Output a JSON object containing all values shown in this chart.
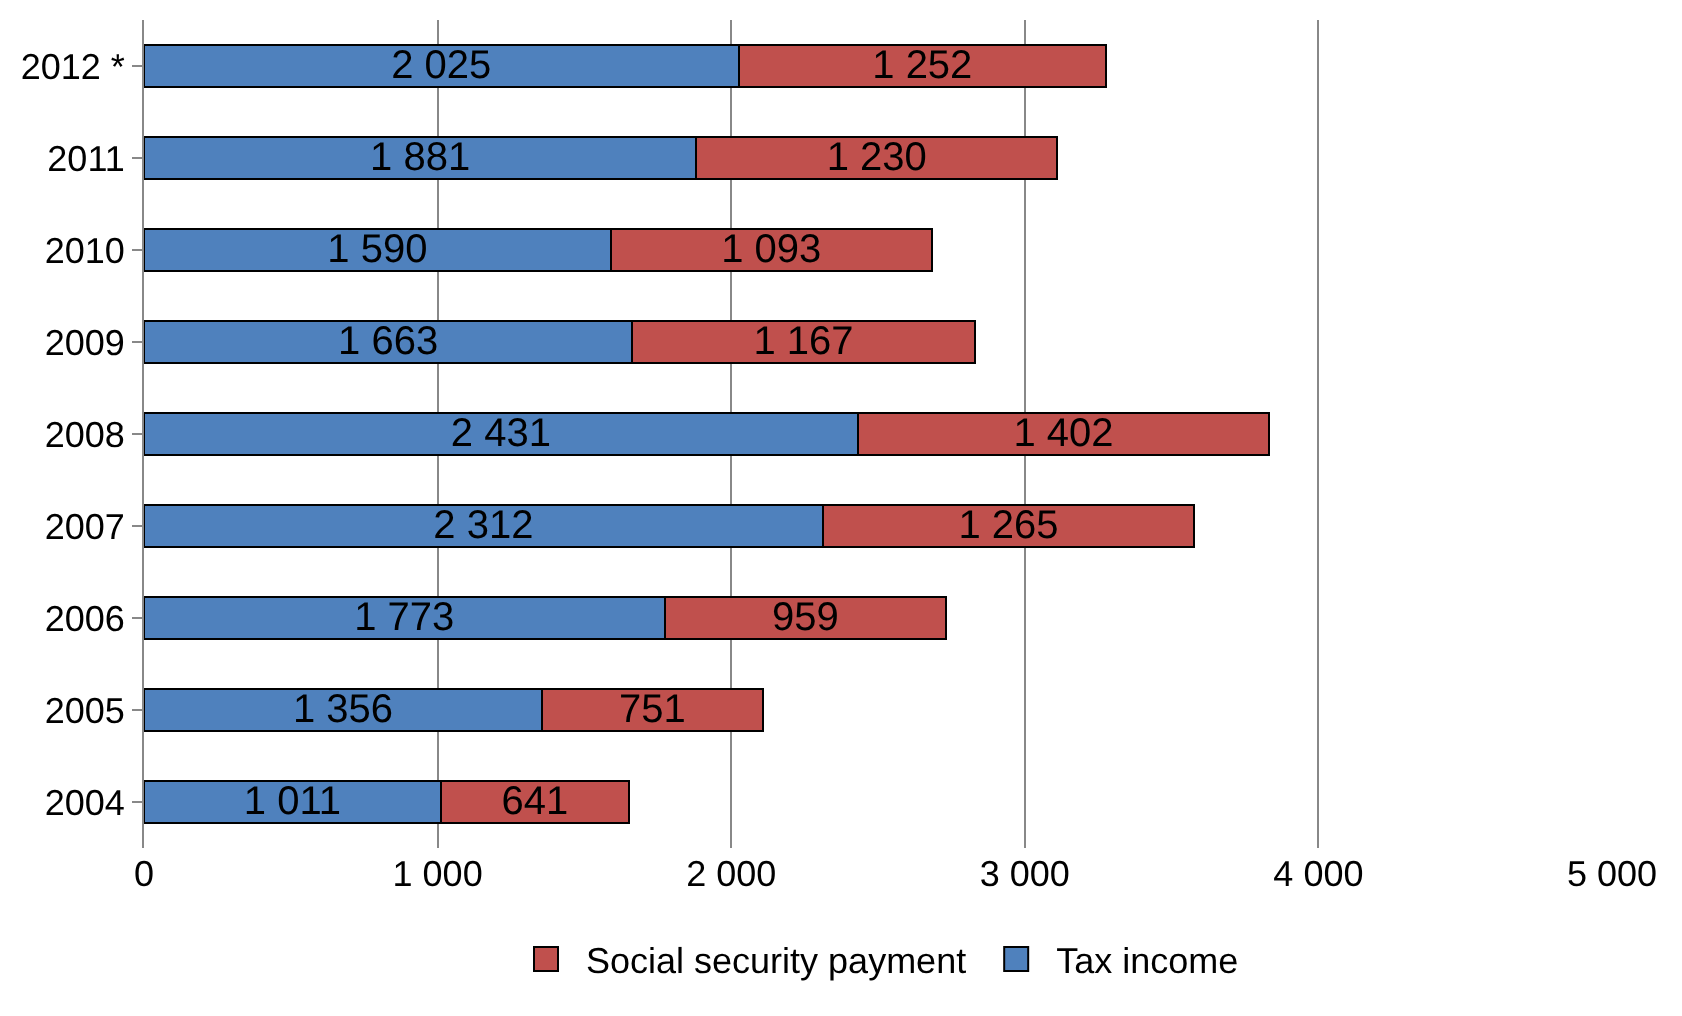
{
  "chart_data": {
    "type": "bar",
    "orientation": "horizontal",
    "stacked": true,
    "categories": [
      "2012 *",
      "2011",
      "2010",
      "2009",
      "2008",
      "2007",
      "2006",
      "2005",
      "2004"
    ],
    "series": [
      {
        "name": "Tax income",
        "color": "#4f81bd",
        "values": [
          2025,
          1881,
          1590,
          1663,
          2431,
          2312,
          1773,
          1356,
          1011
        ],
        "value_labels": [
          "2 025",
          "1 881",
          "1 590",
          "1 663",
          "2 431",
          "2 312",
          "1 773",
          "1 356",
          "1 011"
        ]
      },
      {
        "name": "Social security payment",
        "color": "#c0504d",
        "values": [
          1252,
          1230,
          1093,
          1167,
          1402,
          1265,
          959,
          751,
          641
        ],
        "value_labels": [
          "1 252",
          "1 230",
          "1 093",
          "1 167",
          "1 402",
          "1 265",
          "959",
          "751",
          "641"
        ]
      }
    ],
    "xlim": [
      0,
      5000
    ],
    "xticks": [
      0,
      {
        "value": 1000,
        "label": "1 000"
      },
      {
        "value": 2000,
        "label": "2 000"
      },
      {
        "value": 3000,
        "label": "3 000"
      },
      {
        "value": 4000,
        "label": "4 000"
      },
      {
        "value": 5000,
        "label": "5 000"
      }
    ],
    "grid": "x",
    "legend": "bottom"
  }
}
